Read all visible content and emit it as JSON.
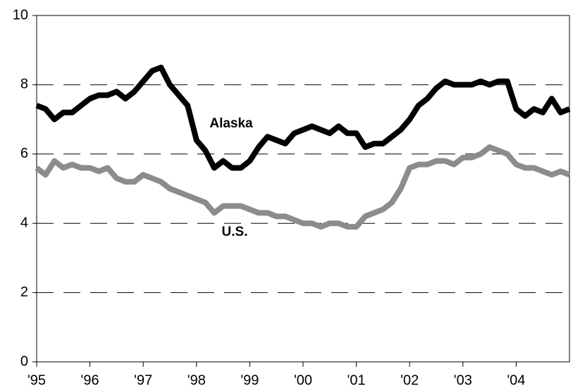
{
  "chart_data": {
    "type": "line",
    "x": [
      1995,
      1995.167,
      1995.333,
      1995.5,
      1995.667,
      1995.833,
      1996,
      1996.167,
      1996.333,
      1996.5,
      1996.667,
      1996.833,
      1997,
      1997.167,
      1997.333,
      1997.5,
      1997.667,
      1997.833,
      1998,
      1998.167,
      1998.333,
      1998.5,
      1998.667,
      1998.833,
      1999,
      1999.167,
      1999.333,
      1999.5,
      1999.667,
      1999.833,
      2000,
      2000.167,
      2000.333,
      2000.5,
      2000.667,
      2000.833,
      2001,
      2001.167,
      2001.333,
      2001.5,
      2001.667,
      2001.833,
      2002,
      2002.167,
      2002.333,
      2002.5,
      2002.667,
      2002.833,
      2003,
      2003.167,
      2003.333,
      2003.5,
      2003.667,
      2003.833,
      2004,
      2004.167,
      2004.333,
      2004.5,
      2004.667,
      2004.833,
      2005
    ],
    "series": [
      {
        "name": "Alaska",
        "color": "#000000",
        "values": [
          7.4,
          7.3,
          7.0,
          7.2,
          7.2,
          7.4,
          7.6,
          7.7,
          7.7,
          7.8,
          7.6,
          7.8,
          8.1,
          8.4,
          8.5,
          8.0,
          7.7,
          7.4,
          6.4,
          6.1,
          5.6,
          5.8,
          5.6,
          5.6,
          5.8,
          6.2,
          6.5,
          6.4,
          6.3,
          6.6,
          6.7,
          6.8,
          6.7,
          6.6,
          6.8,
          6.6,
          6.6,
          6.2,
          6.3,
          6.3,
          6.5,
          6.7,
          7.0,
          7.4,
          7.6,
          7.9,
          8.1,
          8.0,
          8.0,
          8.0,
          8.1,
          8.0,
          8.1,
          8.1,
          7.3,
          7.1,
          7.3,
          7.2,
          7.6,
          7.2,
          7.3
        ]
      },
      {
        "name": "U.S.",
        "color": "#8c8c8c",
        "values": [
          5.6,
          5.4,
          5.8,
          5.6,
          5.7,
          5.6,
          5.6,
          5.5,
          5.6,
          5.3,
          5.2,
          5.2,
          5.4,
          5.3,
          5.2,
          5.0,
          4.9,
          4.8,
          4.7,
          4.6,
          4.3,
          4.5,
          4.5,
          4.5,
          4.4,
          4.3,
          4.3,
          4.2,
          4.2,
          4.1,
          4.0,
          4.0,
          3.9,
          4.0,
          4.0,
          3.9,
          3.9,
          4.2,
          4.3,
          4.4,
          4.6,
          5.0,
          5.6,
          5.7,
          5.7,
          5.8,
          5.8,
          5.7,
          5.9,
          5.9,
          6.0,
          6.2,
          6.1,
          6.0,
          5.7,
          5.6,
          5.6,
          5.5,
          5.4,
          5.5,
          5.4
        ]
      }
    ],
    "xlim": [
      1995,
      2005
    ],
    "xticks": [
      {
        "value": 1995,
        "label": "'95"
      },
      {
        "value": 1996,
        "label": "'96"
      },
      {
        "value": 1997,
        "label": "'97"
      },
      {
        "value": 1998,
        "label": "'98"
      },
      {
        "value": 1999,
        "label": "'99"
      },
      {
        "value": 2000,
        "label": "'00"
      },
      {
        "value": 2001,
        "label": "'01"
      },
      {
        "value": 2002,
        "label": "'02"
      },
      {
        "value": 2003,
        "label": "'03"
      },
      {
        "value": 2004,
        "label": "'04"
      }
    ],
    "ylim": [
      0,
      10
    ],
    "yticks": [
      0,
      2,
      4,
      6,
      8,
      10
    ],
    "grid": true
  }
}
